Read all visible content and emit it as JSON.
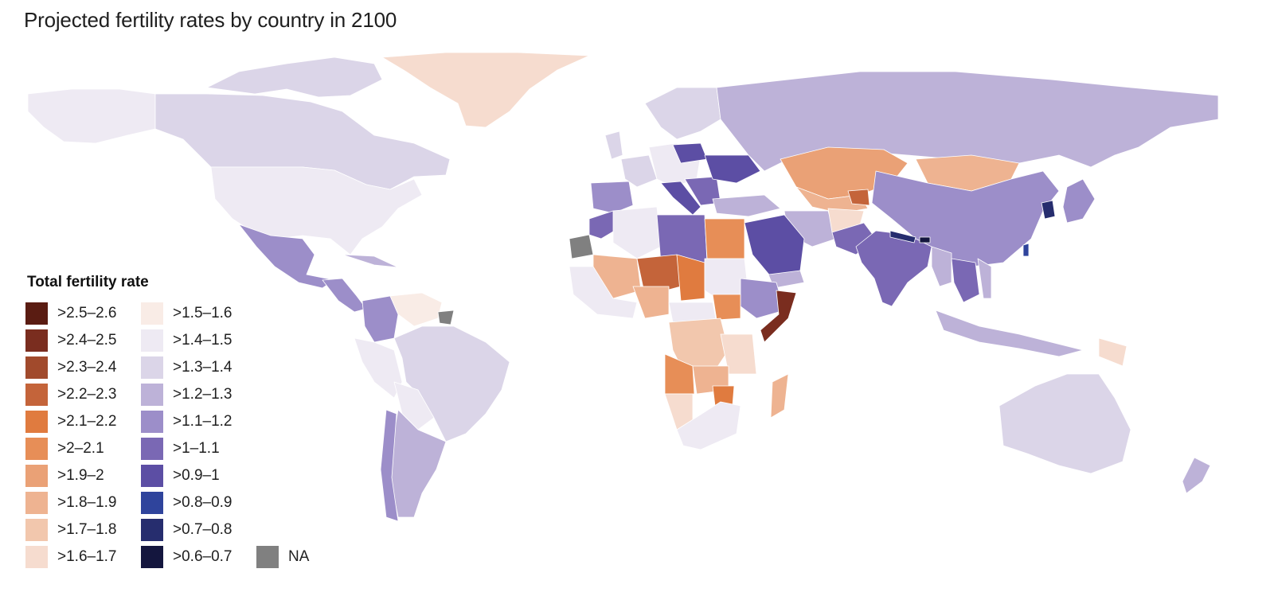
{
  "title": "Projected fertility rates by country in 2100",
  "legend": {
    "title": "Total fertility rate",
    "items": [
      {
        "label": ">2.5–2.6",
        "color": "#5a1c12"
      },
      {
        "label": ">2.4–2.5",
        "color": "#7a2d1f"
      },
      {
        "label": ">2.3–2.4",
        "color": "#a14a2c"
      },
      {
        "label": ">2.2–2.3",
        "color": "#c4643a"
      },
      {
        "label": ">2.1–2.2",
        "color": "#e07b3f"
      },
      {
        "label": ">2–2.1",
        "color": "#e78e57"
      },
      {
        "label": ">1.9–2",
        "color": "#eaa176"
      },
      {
        "label": ">1.8–1.9",
        "color": "#eeb391"
      },
      {
        "label": ">1.7–1.8",
        "color": "#f2c7ad"
      },
      {
        "label": ">1.6–1.7",
        "color": "#f6dccf"
      },
      {
        "label": ">1.5–1.6",
        "color": "#f9ece6"
      },
      {
        "label": ">1.4–1.5",
        "color": "#eeeaf3"
      },
      {
        "label": ">1.3–1.4",
        "color": "#dbd5e8"
      },
      {
        "label": ">1.2–1.3",
        "color": "#bdb2d8"
      },
      {
        "label": ">1.1–1.2",
        "color": "#9c8ec9"
      },
      {
        "label": ">1–1.1",
        "color": "#7a68b4"
      },
      {
        "label": ">0.9–1",
        "color": "#5c4ea4"
      },
      {
        "label": ">0.8–0.9",
        "color": "#2f449c"
      },
      {
        "label": ">0.7–0.8",
        "color": "#262d6e"
      },
      {
        "label": ">0.6–0.7",
        "color": "#14163e"
      },
      {
        "label": "NA",
        "color": "#808080"
      }
    ]
  }
}
